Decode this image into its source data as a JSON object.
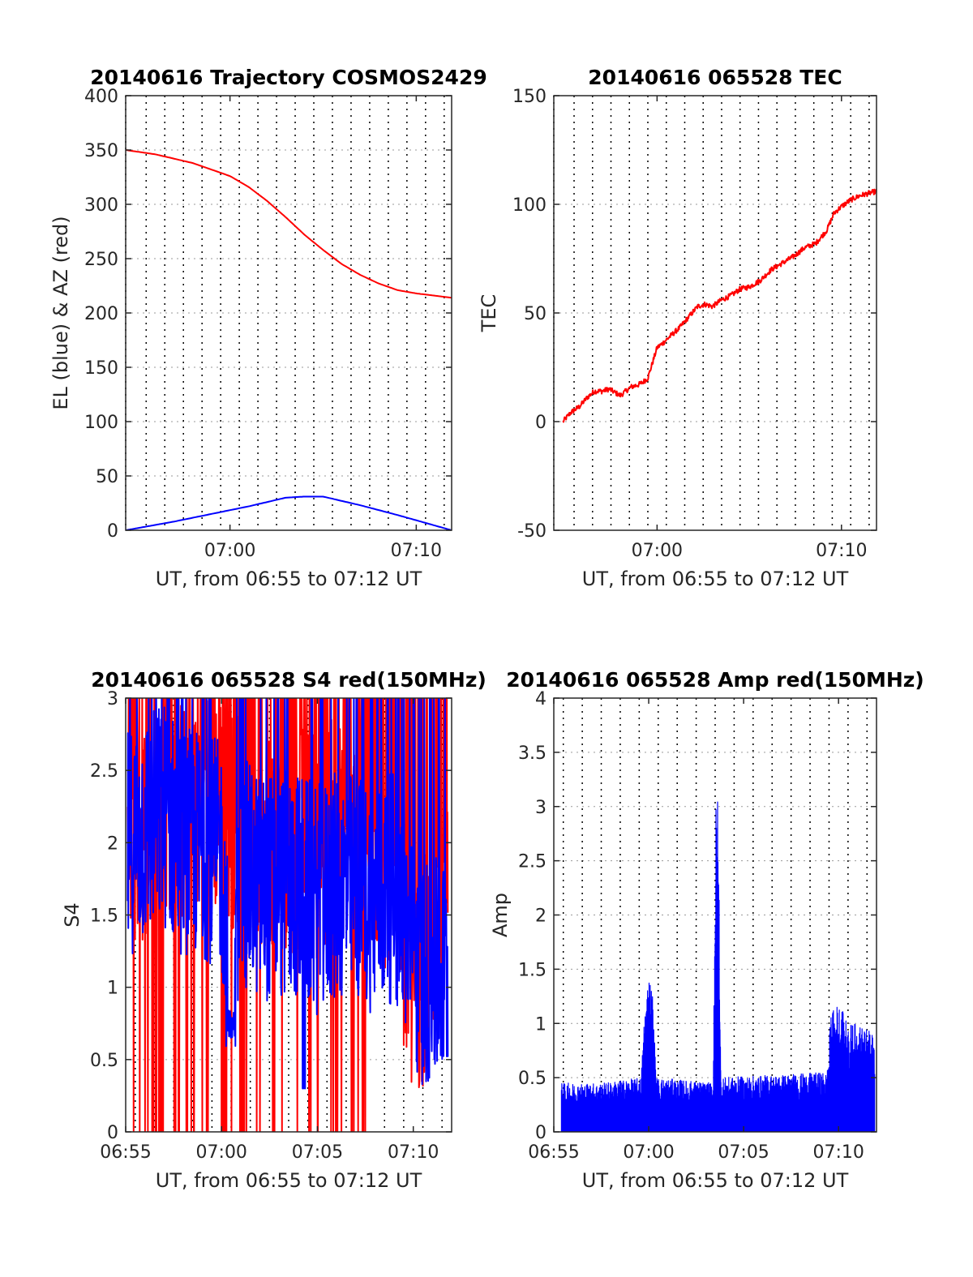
{
  "chart_data": [
    {
      "type": "line",
      "title": "20140616 Trajectory COSMOS2429",
      "xlabel": "UT, from 06:55 to 07:12 UT",
      "ylabel": "EL (blue) & AZ (red)",
      "xlim": [
        -0.6,
        16.9
      ],
      "ylim": [
        0,
        400
      ],
      "xticks": [
        5,
        15
      ],
      "xtick_labels": [
        "07:00",
        "07:10"
      ],
      "yticks": [
        0,
        50,
        100,
        150,
        200,
        250,
        300,
        350,
        400
      ],
      "ytick_labels": [
        "0",
        "50",
        "100",
        "150",
        "200",
        "250",
        "300",
        "350",
        "400"
      ],
      "vgrid_x": [
        -0.6,
        0.5,
        1.5,
        2.5,
        3.5,
        4.5,
        5.5,
        6.5,
        7.5,
        8.5,
        9.5,
        10.5,
        11.5,
        12.5,
        13.5,
        14.5,
        15.5,
        16.5
      ],
      "hgrid": true,
      "series": [
        {
          "color": "#ff0000",
          "x": [
            -0.6,
            1,
            3,
            5,
            6,
            7,
            8,
            9,
            10,
            11,
            12,
            13,
            14,
            15,
            16.9
          ],
          "y": [
            350,
            346,
            338,
            326,
            316,
            303,
            288,
            272,
            258,
            245,
            235,
            227,
            221,
            218,
            214
          ]
        },
        {
          "color": "#0000ff",
          "x": [
            -0.6,
            2,
            4,
            6,
            7,
            8,
            9,
            10,
            12,
            14,
            16.9
          ],
          "y": [
            0,
            8,
            15,
            22,
            26,
            30,
            31,
            31,
            23,
            14,
            0
          ]
        }
      ]
    },
    {
      "type": "line",
      "title": "20140616 065528 TEC",
      "xlabel": "UT, from 06:55 to 07:12 UT",
      "ylabel": "TEC",
      "xlim": [
        -0.6,
        16.9
      ],
      "ylim": [
        -50,
        150
      ],
      "xticks": [
        5,
        15
      ],
      "xtick_labels": [
        "07:00",
        "07:10"
      ],
      "yticks": [
        -50,
        0,
        50,
        100,
        150
      ],
      "ytick_labels": [
        "-50",
        "0",
        "50",
        "100",
        "150"
      ],
      "vgrid_x": [
        -0.6,
        0.5,
        1.5,
        2.5,
        3.5,
        4.5,
        5.5,
        6.5,
        7.5,
        8.5,
        9.5,
        10.5,
        11.5,
        12.5,
        13.5,
        14.5,
        15.5,
        16.5
      ],
      "hgrid": true,
      "series": [
        {
          "color": "#ff0000",
          "noise": 1.2,
          "x": [
            -0.1,
            0.3,
            0.8,
            1.2,
            1.6,
            2.0,
            2.4,
            2.8,
            3.0,
            3.3,
            3.6,
            4.0,
            4.2,
            4.5,
            5.0,
            5.3,
            5.8,
            6.2,
            6.6,
            7.2,
            7.6,
            8.0,
            8.5,
            9.0,
            9.5,
            10.0,
            10.6,
            11.2,
            11.8,
            12.4,
            13.0,
            13.6,
            14.2,
            14.6,
            15.0,
            15.5,
            16.0,
            16.9
          ],
          "y": [
            0,
            4,
            7,
            11,
            14,
            14,
            15,
            13,
            12,
            14,
            16,
            17,
            18,
            20,
            34,
            36,
            40,
            43,
            47,
            53,
            54,
            53,
            56,
            58,
            61,
            62,
            65,
            70,
            73,
            76,
            80,
            82,
            88,
            96,
            99,
            102,
            104,
            106
          ]
        }
      ]
    },
    {
      "type": "line",
      "title": "20140616 065528 S4 red(150MHz)",
      "xlabel": "UT, from 06:55 to 07:12 UT",
      "ylabel": "S4",
      "xlim": [
        0,
        17
      ],
      "ylim": [
        0,
        3
      ],
      "xticks": [
        0,
        5,
        10,
        15
      ],
      "xtick_labels": [
        "06:55",
        "07:00",
        "07:05",
        "07:10"
      ],
      "yticks": [
        0,
        0.5,
        1,
        1.5,
        2,
        2.5,
        3
      ],
      "ytick_labels": [
        "0",
        "0.5",
        "1",
        "1.5",
        "2",
        "2.5",
        "3"
      ],
      "vgrid_x": [
        0.5,
        1.5,
        2.5,
        3.5,
        4.5,
        5.5,
        6.5,
        7.5,
        8.5,
        9.5,
        10.5,
        11.5,
        12.5,
        13.5,
        14.5,
        15.5,
        16.5
      ],
      "hgrid": true,
      "series": [
        {
          "color": "#ff0000",
          "noisy": true,
          "x": [
            0.1,
            1,
            2,
            3,
            4,
            5,
            5.5,
            6,
            7,
            8,
            9,
            10,
            11,
            12,
            13,
            14,
            14.5,
            15,
            15.5,
            16,
            16.8
          ],
          "y": [
            2.0,
            2.1,
            2.3,
            2.2,
            2.3,
            2.3,
            2.2,
            2.2,
            2.0,
            2.1,
            2.0,
            2.0,
            2.1,
            2.0,
            2.0,
            1.8,
            1.3,
            1.0,
            1.1,
            1.4,
            1.6
          ]
        },
        {
          "color": "#0000ff",
          "noisy": true,
          "x": [
            0.1,
            1,
            2,
            3,
            4,
            5,
            5.5,
            6,
            7,
            8,
            9,
            10,
            11,
            12,
            13,
            14,
            14.5,
            15,
            15.5,
            16,
            16.8
          ],
          "y": [
            2.0,
            2.1,
            2.2,
            2.0,
            2.0,
            1.9,
            0.8,
            1.8,
            1.7,
            1.7,
            1.7,
            1.6,
            1.7,
            1.7,
            1.6,
            1.7,
            1.5,
            1.2,
            1.1,
            1.1,
            1.1
          ]
        }
      ]
    },
    {
      "type": "line",
      "title": "20140616 065528 Amp red(150MHz)",
      "xlabel": "UT, from 06:55 to 07:12 UT",
      "ylabel": "Amp",
      "xlim": [
        0,
        17
      ],
      "ylim": [
        0,
        4
      ],
      "xticks": [
        0,
        5,
        10,
        15
      ],
      "xtick_labels": [
        "06:55",
        "07:00",
        "07:05",
        "07:10"
      ],
      "yticks": [
        0,
        0.5,
        1,
        1.5,
        2,
        2.5,
        3,
        3.5,
        4
      ],
      "ytick_labels": [
        "0",
        "0.5",
        "1",
        "1.5",
        "2",
        "2.5",
        "3",
        "3.5",
        "4"
      ],
      "vgrid_x": [
        0.5,
        1.5,
        2.5,
        3.5,
        4.5,
        5.5,
        6.5,
        7.5,
        8.5,
        9.5,
        10.5,
        11.5,
        12.5,
        13.5,
        14.5,
        15.5,
        16.5
      ],
      "hgrid": true,
      "series": [
        {
          "color": "#0000ff",
          "filled": true,
          "x": [
            0.4,
            2.5,
            4.6,
            4.8,
            5.0,
            5.2,
            5.4,
            8.4,
            8.5,
            8.6,
            8.7,
            8.8,
            14.4,
            14.6,
            15.0,
            15.5,
            16.0,
            16.9
          ],
          "y": [
            0.45,
            0.45,
            0.5,
            1.2,
            1.5,
            1.3,
            0.5,
            0.45,
            2.8,
            3.35,
            2.5,
            0.5,
            0.55,
            1.1,
            1.2,
            1.0,
            1.0,
            0.9
          ]
        }
      ]
    }
  ]
}
